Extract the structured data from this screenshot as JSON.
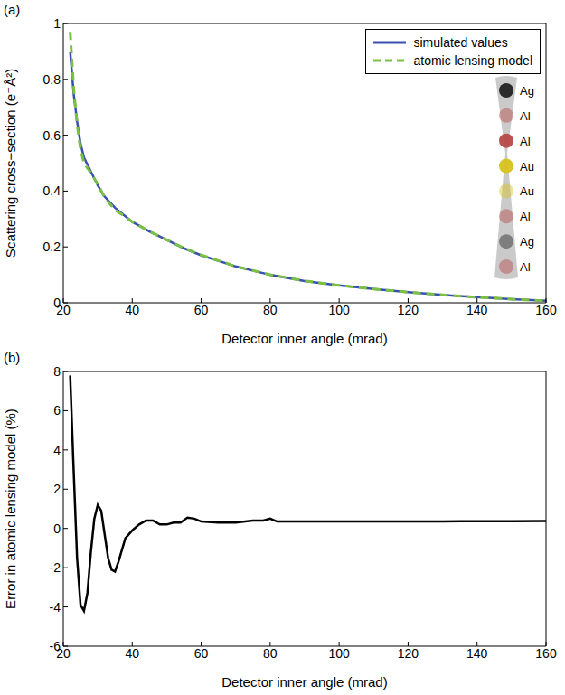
{
  "chart_data": [
    {
      "type": "line",
      "panel_label": "(a)",
      "x_label": "Detector inner angle (mrad)",
      "y_label": "Scattering cross−section (e⁻Å²)",
      "x": [
        22,
        23,
        24,
        25,
        26,
        28,
        30,
        32,
        35,
        38,
        40,
        45,
        50,
        55,
        60,
        70,
        80,
        90,
        100,
        110,
        120,
        130,
        140,
        150,
        160
      ],
      "series": [
        {
          "name": "simulated values",
          "color": "#3a4fb0",
          "line_style": "solid",
          "values": [
            0.9,
            0.75,
            0.65,
            0.57,
            0.52,
            0.47,
            0.42,
            0.38,
            0.34,
            0.31,
            0.29,
            0.255,
            0.225,
            0.195,
            0.17,
            0.13,
            0.1,
            0.078,
            0.062,
            0.049,
            0.038,
            0.028,
            0.02,
            0.013,
            0.007
          ]
        },
        {
          "name": "atomic lensing model",
          "color": "#7ac143",
          "line_style": "dashed",
          "values": [
            0.97,
            0.77,
            0.64,
            0.55,
            0.5,
            0.465,
            0.425,
            0.376,
            0.333,
            0.308,
            0.29,
            0.256,
            0.225,
            0.196,
            0.171,
            0.1305,
            0.1005,
            0.0783,
            0.0622,
            0.0492,
            0.0381,
            0.0281,
            0.0201,
            0.0131,
            0.007
          ]
        }
      ],
      "xlim": [
        20,
        160
      ],
      "xticks": [
        20,
        40,
        60,
        80,
        100,
        120,
        140,
        160
      ],
      "ylim": [
        0,
        1
      ],
      "yticks": [
        0,
        0.2,
        0.4,
        0.6,
        0.8,
        1
      ],
      "grid": false,
      "legend": "upper right",
      "annotations": [
        "Ag",
        "Al",
        "Al",
        "Au",
        "Au",
        "Al",
        "Ag",
        "Al"
      ]
    },
    {
      "type": "line",
      "panel_label": "(b)",
      "x_label": "Detector inner angle (mrad)",
      "y_label": "Error in atomic lensing model (%)",
      "x": [
        22,
        23,
        24,
        25,
        26,
        27,
        28,
        29,
        30,
        31,
        32,
        33,
        34,
        35,
        36,
        38,
        40,
        42,
        44,
        46,
        48,
        50,
        52,
        54,
        56,
        58,
        60,
        65,
        70,
        75,
        78,
        80,
        82,
        85,
        90,
        100,
        110,
        120,
        130,
        140,
        150,
        160
      ],
      "series": [
        {
          "color": "#000000",
          "line_style": "solid",
          "values": [
            7.8,
            3,
            -1.5,
            -3.9,
            -4.2,
            -3.3,
            -1.2,
            0.5,
            1.2,
            0.9,
            -0.3,
            -1.5,
            -2.1,
            -2.2,
            -1.7,
            -0.5,
            -0.1,
            0.2,
            0.4,
            0.4,
            0.2,
            0.2,
            0.3,
            0.3,
            0.55,
            0.5,
            0.35,
            0.3,
            0.3,
            0.4,
            0.4,
            0.5,
            0.35,
            0.35,
            0.35,
            0.35,
            0.35,
            0.36,
            0.36,
            0.37,
            0.37,
            0.38
          ]
        }
      ],
      "xlim": [
        20,
        160
      ],
      "xticks": [
        20,
        40,
        60,
        80,
        100,
        120,
        140,
        160
      ],
      "ylim": [
        -6,
        8
      ],
      "yticks": [
        -6,
        -4,
        -2,
        0,
        2,
        4,
        6,
        8
      ],
      "grid": false
    }
  ]
}
